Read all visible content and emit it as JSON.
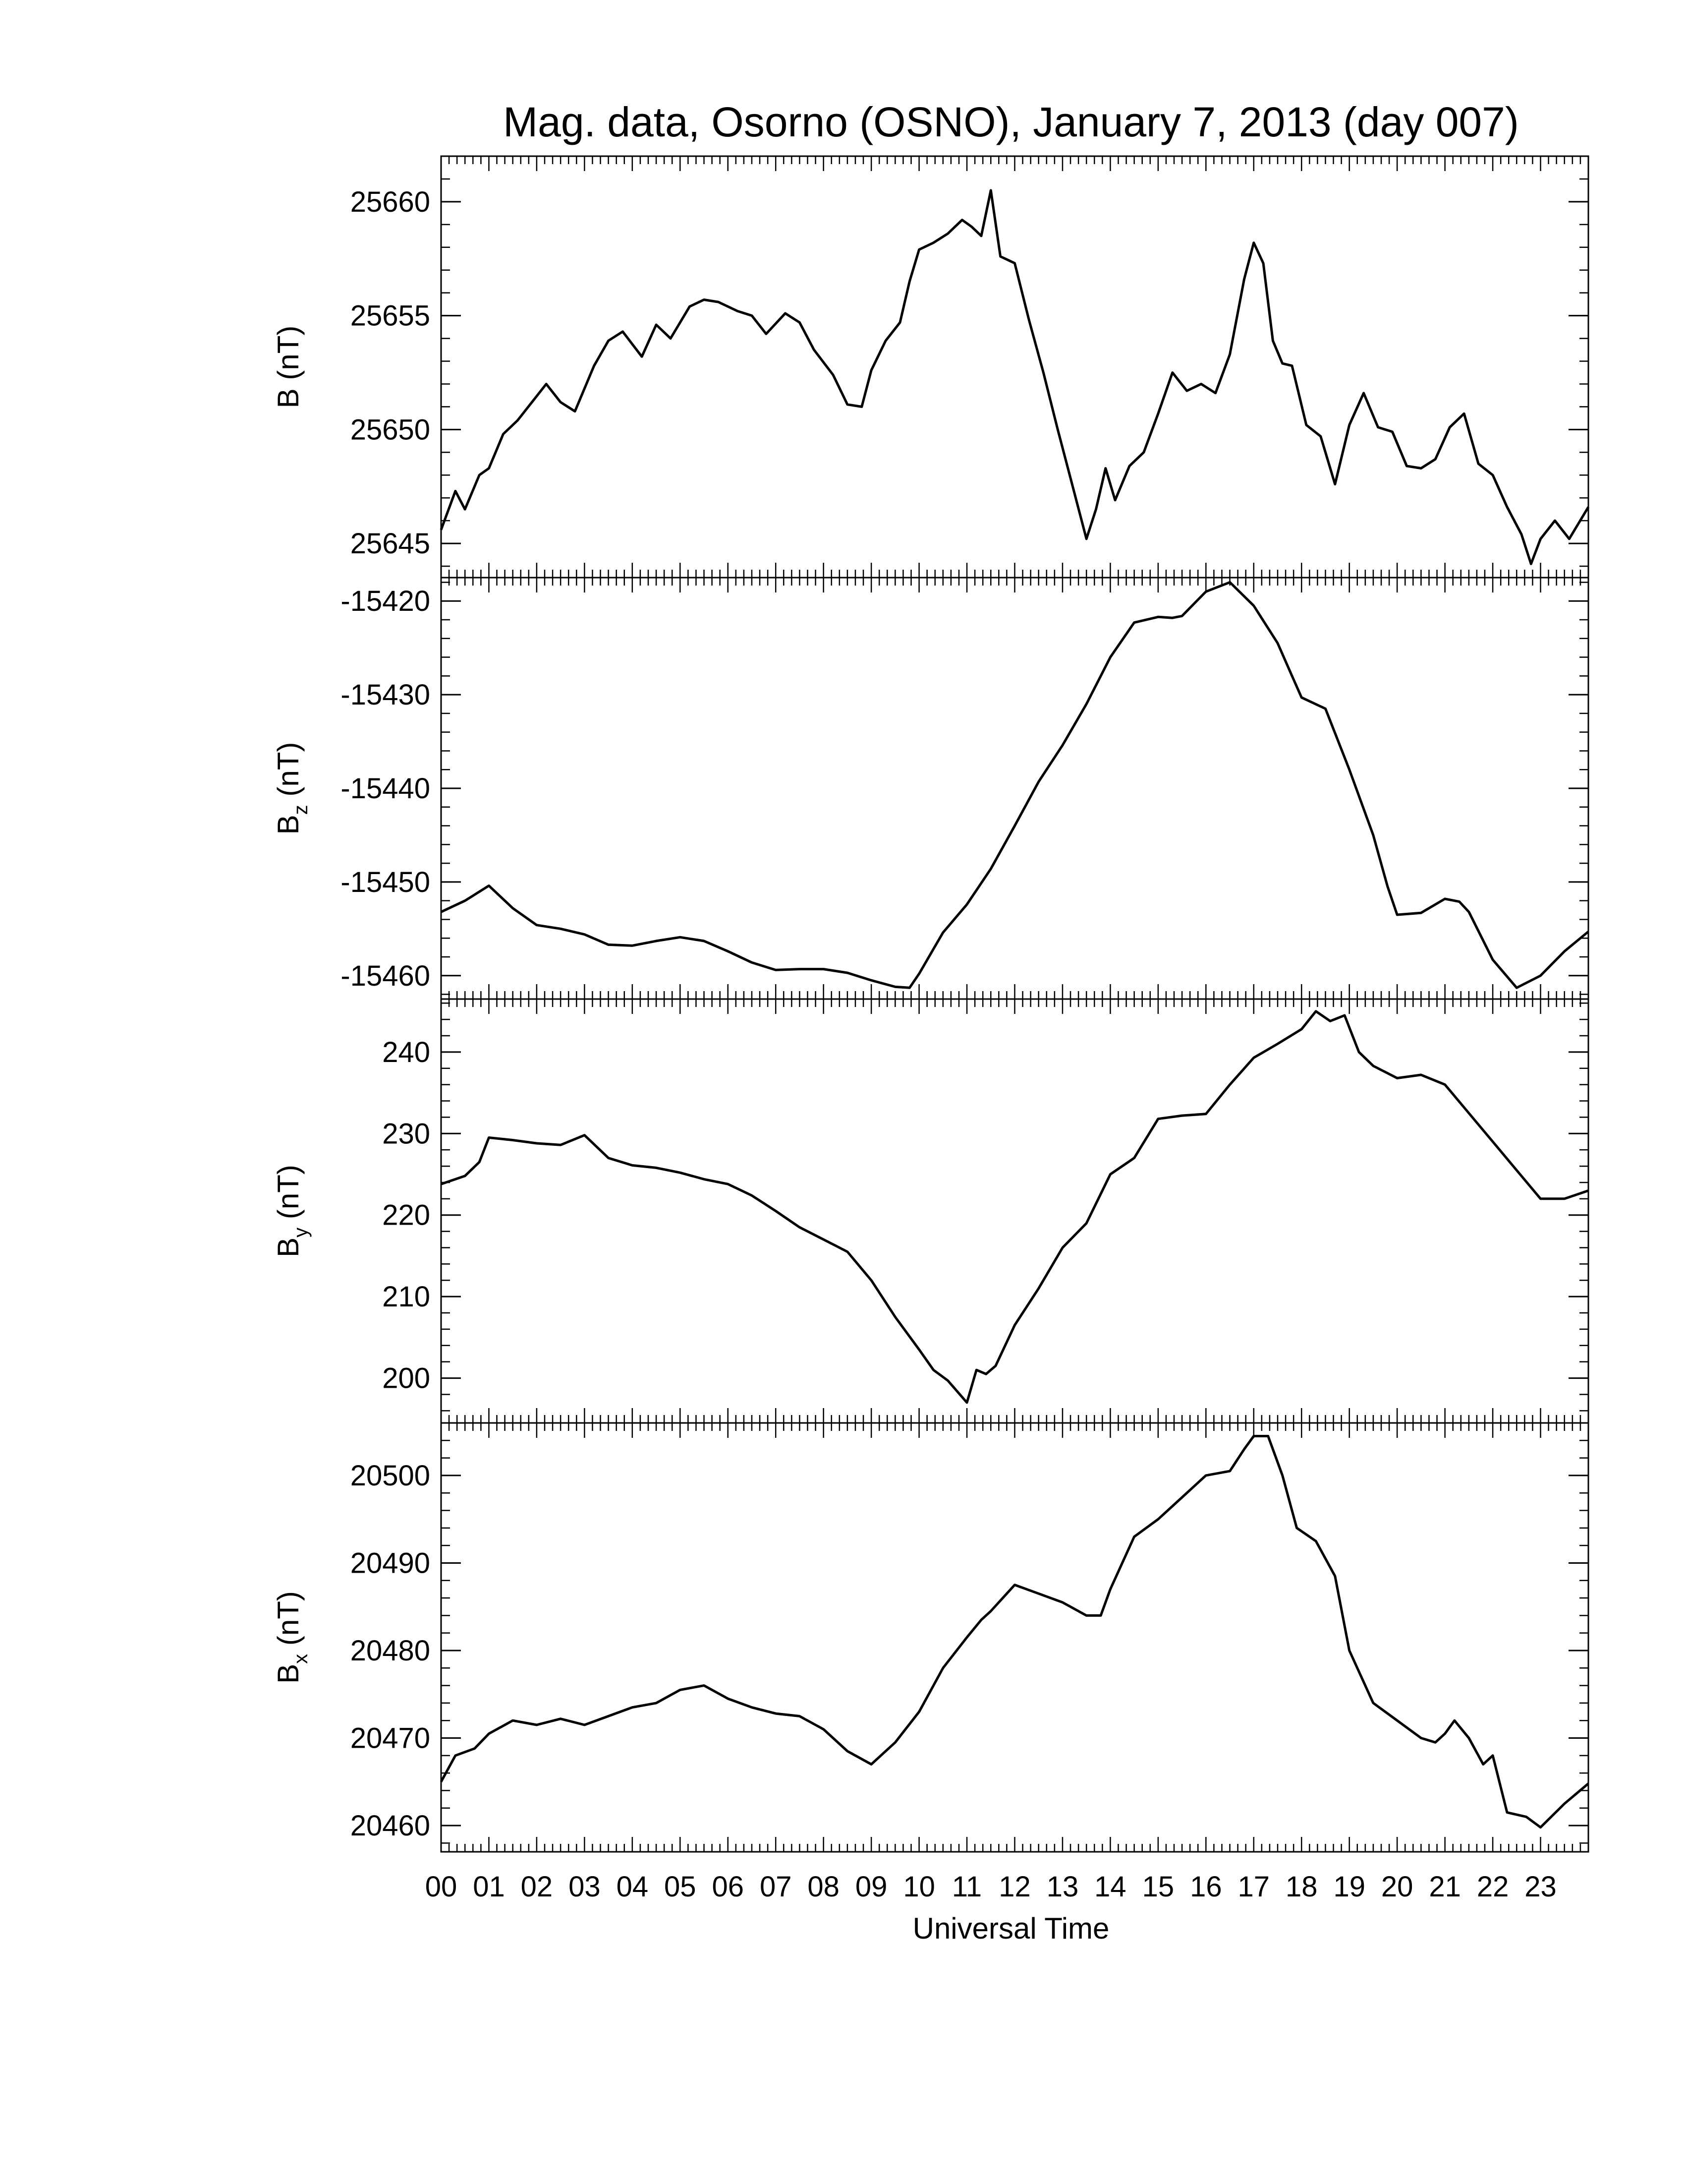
{
  "chart_data": {
    "type": "line",
    "title": "Mag. data, Osorno (OSNO), January 7, 2013 (day 007)",
    "xlabel": "Universal Time",
    "x_tick_labels": [
      "00",
      "01",
      "02",
      "03",
      "04",
      "05",
      "06",
      "07",
      "08",
      "09",
      "10",
      "11",
      "12",
      "13",
      "14",
      "15",
      "16",
      "17",
      "18",
      "19",
      "20",
      "21",
      "22",
      "23"
    ],
    "x_range_hours": [
      0,
      24
    ],
    "line_color": "#000000",
    "grid": false,
    "panels": [
      {
        "ylabel": {
          "main": "B",
          "sub": "",
          "unit": "(nT)"
        },
        "ylim": [
          25643.5,
          25662
        ],
        "yticks": [
          25645,
          25650,
          25655,
          25660
        ],
        "ytick_labels": [
          "25645",
          "25650",
          "25655",
          "25660"
        ],
        "series": [
          {
            "x": [
              0,
              0.3,
              0.5,
              0.8,
              1.0,
              1.3,
              1.6,
              1.9,
              2.2,
              2.5,
              2.8,
              3.2,
              3.5,
              3.8,
              4.2,
              4.5,
              4.8,
              5.2,
              5.5,
              5.8,
              6.2,
              6.5,
              6.8,
              7.2,
              7.5,
              7.8,
              8.2,
              8.5,
              8.8,
              9.0,
              9.3,
              9.6,
              9.8,
              10.0,
              10.3,
              10.6,
              10.9,
              11.1,
              11.3,
              11.5,
              11.7,
              12.0,
              12.3,
              12.6,
              12.9,
              13.2,
              13.5,
              13.7,
              13.9,
              14.1,
              14.4,
              14.7,
              15.0,
              15.3,
              15.6,
              15.9,
              16.2,
              16.5,
              16.8,
              17.0,
              17.2,
              17.4,
              17.6,
              17.8,
              18.1,
              18.4,
              18.7,
              19.0,
              19.3,
              19.6,
              19.9,
              20.2,
              20.5,
              20.8,
              21.1,
              21.4,
              21.7,
              22.0,
              22.3,
              22.6,
              22.8,
              23.0,
              23.3,
              23.6,
              24.0
            ],
            "y": [
              25645.6,
              25647.3,
              25646.5,
              25648.0,
              25648.3,
              25649.8,
              25650.4,
              25651.2,
              25652.0,
              25651.2,
              25650.8,
              25652.8,
              25653.9,
              25654.3,
              25653.2,
              25654.6,
              25654.0,
              25655.4,
              25655.7,
              25655.6,
              25655.2,
              25655.0,
              25654.2,
              25655.1,
              25654.7,
              25653.5,
              25652.4,
              25651.1,
              25651.0,
              25652.6,
              25653.9,
              25654.7,
              25656.5,
              25657.9,
              25658.2,
              25658.6,
              25659.2,
              25658.9,
              25658.5,
              25660.5,
              25657.6,
              25657.3,
              25654.8,
              25652.5,
              25650.0,
              25647.6,
              25645.2,
              25646.5,
              25648.3,
              25646.9,
              25648.4,
              25649.0,
              25650.7,
              25652.5,
              25651.7,
              25652.0,
              25651.6,
              25653.3,
              25656.6,
              25658.2,
              25657.3,
              25653.9,
              25652.9,
              25652.8,
              25650.2,
              25649.7,
              25647.6,
              25650.2,
              25651.6,
              25650.1,
              25649.9,
              25648.4,
              25648.3,
              25648.7,
              25650.1,
              25650.7,
              25648.5,
              25648.0,
              25646.6,
              25645.4,
              25644.1,
              25645.2,
              25646.0,
              25645.2,
              25646.6
            ]
          }
        ]
      },
      {
        "ylabel": {
          "main": "B",
          "sub": "z",
          "unit": "(nT)"
        },
        "ylim": [
          -15462.5,
          -15417.5
        ],
        "yticks": [
          -15460,
          -15450,
          -15440,
          -15430,
          -15420
        ],
        "ytick_labels": [
          "-15460",
          "-15450",
          "-15440",
          "-15430",
          "-15420"
        ],
        "series": [
          {
            "x": [
              0,
              0.5,
              1.0,
              1.5,
              2.0,
              2.5,
              3.0,
              3.5,
              4.0,
              4.5,
              5.0,
              5.5,
              6.0,
              6.5,
              7.0,
              7.5,
              8.0,
              8.5,
              9.0,
              9.5,
              9.8,
              10.0,
              10.5,
              11.0,
              11.5,
              12.0,
              12.5,
              13.0,
              13.5,
              14.0,
              14.5,
              15.0,
              15.3,
              15.5,
              16.0,
              16.5,
              17.0,
              17.5,
              17.8,
              18.0,
              18.5,
              19.0,
              19.5,
              19.8,
              20.0,
              20.5,
              21.0,
              21.3,
              21.5,
              22.0,
              22.5,
              23.0,
              23.5,
              24.0
            ],
            "y": [
              -15453.2,
              -15452.0,
              -15450.4,
              -15452.8,
              -15454.6,
              -15455.0,
              -15455.6,
              -15456.7,
              -15456.8,
              -15456.3,
              -15455.9,
              -15456.3,
              -15457.4,
              -15458.6,
              -15459.4,
              -15459.3,
              -15459.3,
              -15459.7,
              -15460.5,
              -15461.2,
              -15461.3,
              -15459.8,
              -15455.4,
              -15452.4,
              -15448.6,
              -15444.0,
              -15439.3,
              -15435.4,
              -15431.0,
              -15426.0,
              -15422.3,
              -15421.7,
              -15421.8,
              -15421.6,
              -15419.0,
              -15418.0,
              -15420.5,
              -15424.5,
              -15428.0,
              -15430.3,
              -15431.5,
              -15438.0,
              -15445.0,
              -15450.5,
              -15453.5,
              -15453.3,
              -15451.8,
              -15452.1,
              -15453.2,
              -15458.3,
              -15461.3,
              -15460.0,
              -15457.4,
              -15455.3
            ]
          }
        ]
      },
      {
        "ylabel": {
          "main": "B",
          "sub": "y",
          "unit": "(nT)"
        },
        "ylim": [
          194.5,
          246.5
        ],
        "yticks": [
          200,
          210,
          220,
          230,
          240
        ],
        "ytick_labels": [
          "200",
          "210",
          "220",
          "230",
          "240"
        ],
        "series": [
          {
            "x": [
              0,
              0.5,
              0.8,
              1.0,
              1.5,
              2.0,
              2.5,
              3.0,
              3.5,
              4.0,
              4.5,
              5.0,
              5.5,
              6.0,
              6.5,
              7.0,
              7.5,
              8.0,
              8.5,
              9.0,
              9.5,
              10.0,
              10.3,
              10.6,
              11.0,
              11.2,
              11.4,
              11.6,
              11.8,
              12.0,
              12.5,
              13.0,
              13.5,
              14.0,
              14.5,
              15.0,
              15.5,
              16.0,
              16.5,
              17.0,
              17.5,
              18.0,
              18.3,
              18.6,
              18.9,
              19.2,
              19.5,
              20.0,
              20.5,
              21.0,
              21.5,
              22.0,
              22.5,
              23.0,
              23.5,
              24.0
            ],
            "y": [
              223.8,
              224.8,
              226.5,
              229.5,
              229.2,
              228.8,
              228.6,
              229.8,
              227.0,
              226.1,
              225.8,
              225.2,
              224.4,
              223.8,
              222.4,
              220.5,
              218.5,
              217.0,
              215.5,
              212.0,
              207.5,
              203.5,
              201.0,
              199.7,
              197.0,
              201.0,
              200.5,
              201.5,
              204.0,
              206.5,
              211.0,
              216.0,
              219.0,
              225.0,
              227.0,
              231.8,
              232.2,
              232.4,
              236.0,
              239.3,
              241.0,
              242.8,
              245.0,
              243.8,
              244.5,
              240.0,
              238.3,
              236.8,
              237.2,
              236.0,
              232.5,
              229.0,
              225.5,
              222.0,
              222.0,
              223.0
            ]
          }
        ]
      },
      {
        "ylabel": {
          "main": "B",
          "sub": "x",
          "unit": "(nT)"
        },
        "ylim": [
          20457,
          20506
        ],
        "yticks": [
          20460,
          20470,
          20480,
          20490,
          20500
        ],
        "ytick_labels": [
          "20460",
          "20470",
          "20480",
          "20490",
          "20500"
        ],
        "series": [
          {
            "x": [
              0,
              0.3,
              0.7,
              1.0,
              1.5,
              2.0,
              2.5,
              3.0,
              3.5,
              4.0,
              4.5,
              5.0,
              5.5,
              6.0,
              6.5,
              7.0,
              7.5,
              8.0,
              8.5,
              9.0,
              9.5,
              10.0,
              10.5,
              11.0,
              11.3,
              11.5,
              12.0,
              12.5,
              13.0,
              13.5,
              13.8,
              14.0,
              14.5,
              15.0,
              15.5,
              16.0,
              16.5,
              16.8,
              17.0,
              17.3,
              17.6,
              17.9,
              18.3,
              18.7,
              19.0,
              19.5,
              20.0,
              20.5,
              20.8,
              21.0,
              21.2,
              21.5,
              21.8,
              22.0,
              22.3,
              22.7,
              23.0,
              23.5,
              24.0
            ],
            "y": [
              20465.0,
              20468.0,
              20468.8,
              20470.5,
              20472.0,
              20471.5,
              20472.2,
              20471.5,
              20472.5,
              20473.5,
              20474.0,
              20475.5,
              20476.0,
              20474.5,
              20473.5,
              20472.8,
              20472.5,
              20471.0,
              20468.5,
              20467.0,
              20469.5,
              20473.0,
              20478.0,
              20481.5,
              20483.5,
              20484.5,
              20487.5,
              20486.5,
              20485.5,
              20484.0,
              20484.0,
              20487.0,
              20493.0,
              20495.0,
              20497.5,
              20500.0,
              20500.5,
              20503.0,
              20504.5,
              20504.5,
              20500.0,
              20494.0,
              20492.5,
              20488.5,
              20480.0,
              20474.0,
              20472.0,
              20470.0,
              20469.5,
              20470.5,
              20472.0,
              20470.0,
              20467.0,
              20468.0,
              20461.5,
              20461.0,
              20459.8,
              20462.5,
              20464.8
            ]
          }
        ]
      }
    ]
  }
}
